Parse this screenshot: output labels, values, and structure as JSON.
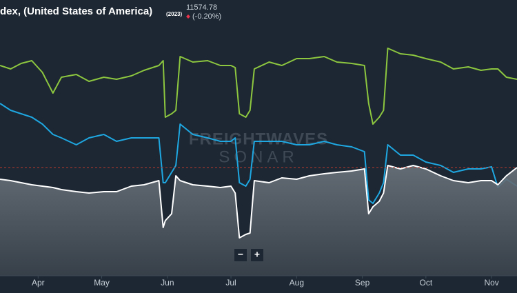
{
  "chart_data": {
    "type": "line",
    "title": "dex, (United States of America)",
    "title_note": "(2023)",
    "last_value": "11574.78",
    "change": "(-0.20%)",
    "watermark": [
      "FREIGHTWAVES",
      "SONAR"
    ],
    "zoom_buttons": [
      "−",
      "+"
    ],
    "x": [
      -18,
      -13,
      -8,
      -3,
      2,
      7,
      11,
      18,
      24,
      31,
      37,
      44,
      50,
      57,
      59,
      60,
      63,
      65,
      67,
      73,
      80,
      86,
      91,
      93,
      95,
      98,
      100,
      102,
      109,
      115,
      122,
      128,
      135,
      141,
      148,
      154,
      156,
      158,
      161,
      163,
      165,
      171,
      177,
      183,
      190,
      196,
      203,
      209,
      214,
      217,
      221,
      226
    ],
    "xlim": [
      -18,
      226
    ],
    "xticks": [
      {
        "value": 0,
        "label": "Apr"
      },
      {
        "value": 30,
        "label": "May"
      },
      {
        "value": 61,
        "label": "Jun"
      },
      {
        "value": 91,
        "label": "Jul"
      },
      {
        "value": 122,
        "label": "Aug"
      },
      {
        "value": 153,
        "label": "Sep"
      },
      {
        "value": 183,
        "label": "Oct"
      },
      {
        "value": 214,
        "label": "Nov"
      }
    ],
    "ylim": [
      0,
      400
    ],
    "reference_line": 157,
    "series": [
      {
        "color": "#8dc63f",
        "values": [
          305,
          300,
          308,
          312,
          295,
          265,
          288,
          292,
          282,
          288,
          285,
          290,
          298,
          305,
          312,
          230,
          235,
          240,
          318,
          310,
          312,
          305,
          305,
          302,
          235,
          230,
          240,
          300,
          310,
          305,
          315,
          315,
          318,
          310,
          308,
          305,
          250,
          220,
          230,
          240,
          330,
          322,
          320,
          315,
          310,
          300,
          303,
          298,
          300,
          300,
          288,
          285
        ]
      },
      {
        "color": "#1ea7e1",
        "values": [
          250,
          240,
          235,
          230,
          220,
          205,
          200,
          190,
          200,
          205,
          195,
          200,
          200,
          200,
          135,
          135,
          150,
          160,
          220,
          205,
          200,
          195,
          195,
          200,
          135,
          130,
          140,
          195,
          195,
          195,
          190,
          190,
          195,
          190,
          187,
          180,
          110,
          105,
          120,
          135,
          190,
          175,
          175,
          165,
          160,
          150,
          155,
          155,
          158,
          128,
          140,
          130
        ]
      },
      {
        "color": "#ffffff",
        "area": true,
        "values": [
          140,
          138,
          135,
          132,
          130,
          128,
          125,
          122,
          120,
          122,
          122,
          130,
          132,
          138,
          70,
          80,
          90,
          145,
          138,
          132,
          130,
          128,
          130,
          120,
          55,
          60,
          62,
          138,
          135,
          142,
          140,
          145,
          148,
          150,
          152,
          155,
          90,
          100,
          108,
          120,
          160,
          155,
          160,
          155,
          145,
          138,
          135,
          138,
          138,
          132,
          145,
          157
        ]
      }
    ]
  }
}
